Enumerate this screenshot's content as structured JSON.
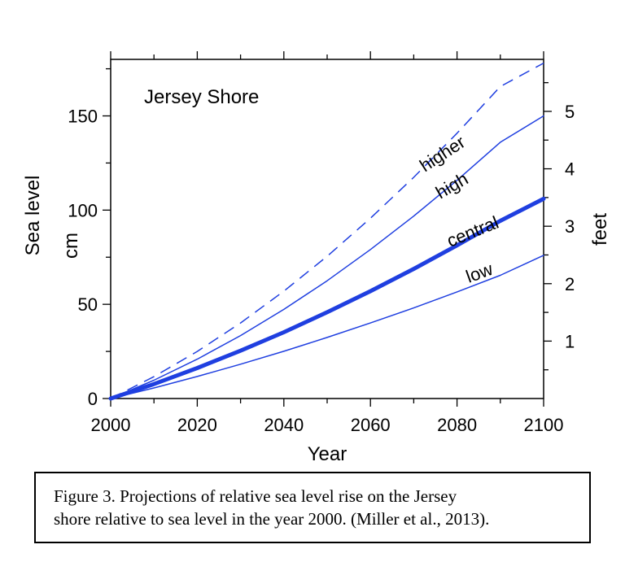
{
  "chart_data": {
    "type": "line",
    "title": "Jersey Shore",
    "xlabel": "Year",
    "ylabel_left": [
      "Sea level",
      "cm"
    ],
    "ylabel_right": "feet",
    "x": [
      2000,
      2010,
      2020,
      2030,
      2040,
      2050,
      2060,
      2070,
      2080,
      2090,
      2100
    ],
    "xlim": [
      2000,
      2100
    ],
    "ylim": [
      0,
      180
    ],
    "xticks": [
      "2000",
      "2020",
      "2040",
      "2060",
      "2080",
      "2100"
    ],
    "yticks_left": [
      "0",
      "50",
      "100",
      "150"
    ],
    "yticks_right": [
      "1",
      "2",
      "3",
      "4",
      "5"
    ],
    "grid": false,
    "series": [
      {
        "name": "higher",
        "style": "dashed",
        "width": 1.5,
        "color": "#1f3fe0",
        "values": [
          0,
          11.6,
          25,
          40.1,
          57,
          75.5,
          95.7,
          117.4,
          140.8,
          165.6,
          178
        ]
      },
      {
        "name": "high",
        "style": "solid",
        "width": 1.5,
        "color": "#1f3fe0",
        "values": [
          0,
          9.7,
          20.9,
          33.4,
          47.3,
          62.5,
          79.1,
          96.8,
          115.8,
          136,
          150
        ]
      },
      {
        "name": "central",
        "style": "solid",
        "width": 5,
        "color": "#1f3fe0",
        "values": [
          0,
          7.7,
          16.2,
          25.4,
          35.2,
          45.8,
          57,
          68.8,
          81.3,
          94.3,
          106
        ]
      },
      {
        "name": "low",
        "style": "solid",
        "width": 1.5,
        "color": "#1f3fe0",
        "values": [
          0,
          5.6,
          11.7,
          18.2,
          25.1,
          32.4,
          40.1,
          48.1,
          56.6,
          65.4,
          76
        ]
      }
    ]
  },
  "caption": {
    "line1": "Figure 3. Projections of relative sea level rise on the Jersey",
    "line2": "shore relative to sea level in the year 2000. (Miller et al., 2013)."
  }
}
